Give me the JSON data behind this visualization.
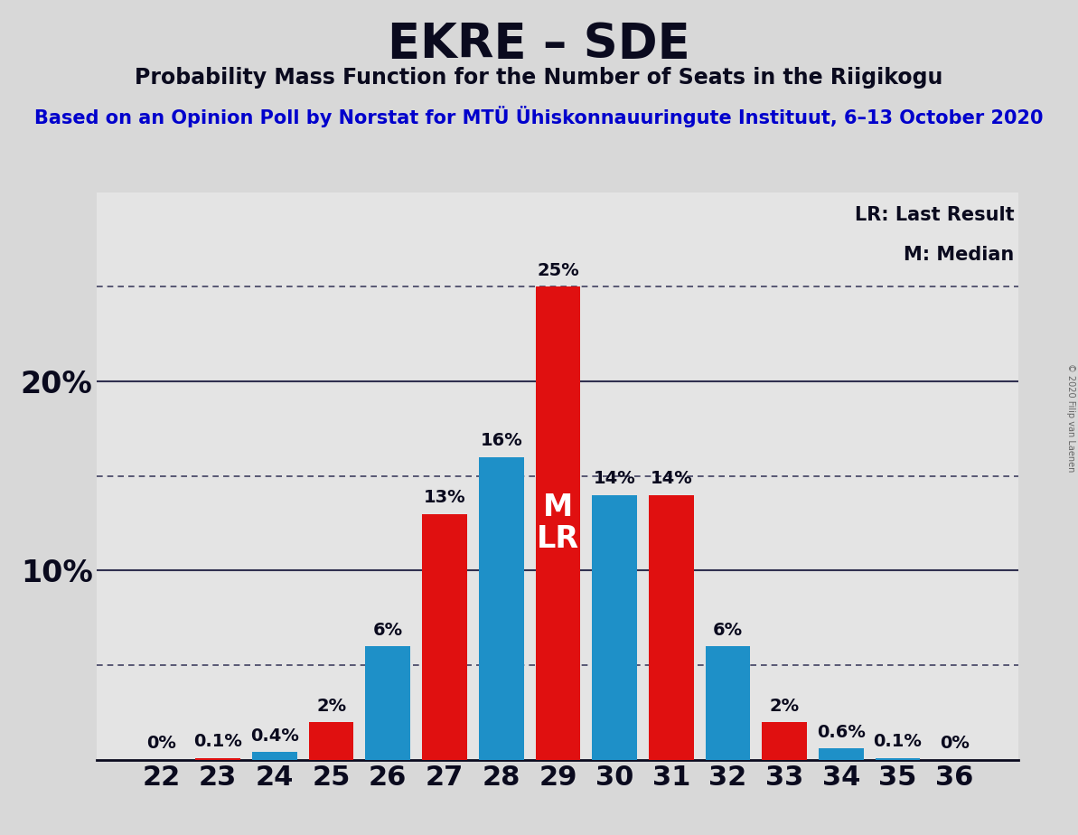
{
  "title": "EKRE – SDE",
  "subtitle": "Probability Mass Function for the Number of Seats in the Riigikogu",
  "source_line": "Based on an Opinion Poll by Norstat for MTÜ Ühiskonnauuringute Instituut, 6–13 October 2020",
  "copyright": "© 2020 Filip van Laenen",
  "legend_lr": "LR: Last Result",
  "legend_m": "M: Median",
  "seats": [
    22,
    23,
    24,
    25,
    26,
    27,
    28,
    29,
    30,
    31,
    32,
    33,
    34,
    35,
    36
  ],
  "blue_values": [
    0.0,
    0.0,
    0.4,
    0.0,
    6.0,
    0.0,
    16.0,
    0.0,
    14.0,
    0.0,
    6.0,
    0.0,
    0.6,
    0.1,
    0.0
  ],
  "red_values": [
    0.0,
    0.1,
    0.0,
    2.0,
    0.0,
    13.0,
    0.0,
    25.0,
    0.0,
    14.0,
    0.0,
    2.0,
    0.0,
    0.0,
    0.0
  ],
  "blue_labels": [
    "0%",
    "",
    "0.4%",
    "",
    "6%",
    "",
    "16%",
    "",
    "14%",
    "",
    "6%",
    "",
    "0.6%",
    "0.1%",
    "0%"
  ],
  "red_labels": [
    "",
    "0.1%",
    "",
    "2%",
    "",
    "13%",
    "",
    "25%",
    "",
    "14%",
    "",
    "2%",
    "",
    "",
    ""
  ],
  "median_seat": 29,
  "lr_seat": 29,
  "blue_color": "#1E90C8",
  "red_color": "#E01010",
  "background_color": "#D8D8D8",
  "plot_bg_color": "#E4E4E4",
  "ylim": [
    0,
    30
  ],
  "dotted_lines": [
    5.0,
    15.0,
    25.0
  ],
  "solid_lines": [
    10.0,
    20.0
  ],
  "title_fontsize": 38,
  "subtitle_fontsize": 17,
  "source_fontsize": 15,
  "bar_label_fontsize": 14,
  "ytick_fontsize": 24,
  "xtick_fontsize": 22,
  "legend_fontsize": 15,
  "mlr_fontsize": 24
}
